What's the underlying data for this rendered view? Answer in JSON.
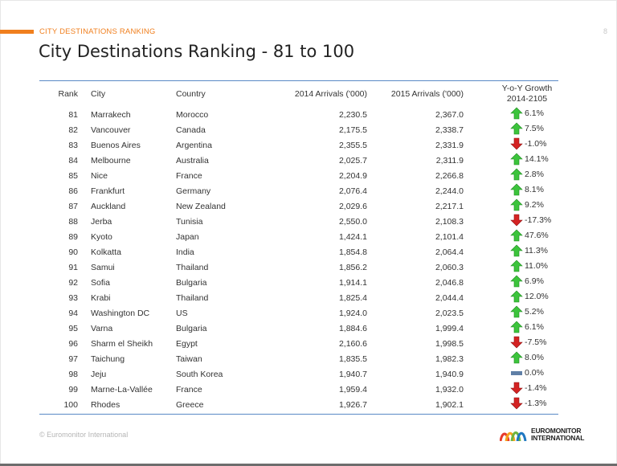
{
  "header": {
    "section_label": "CITY DESTINATIONS RANKING",
    "page_number": "8",
    "title": "City Destinations Ranking - 81 to 100"
  },
  "table": {
    "columns": [
      "Rank",
      "City",
      "Country",
      "2014 Arrivals ('000)",
      "2015 Arrivals ('000)",
      "Y-o-Y Growth 2014-2105"
    ],
    "rows": [
      {
        "rank": "81",
        "city": "Marrakech",
        "country": "Morocco",
        "a2014": "2,230.5",
        "a2015": "2,367.0",
        "trend": "up",
        "growth": "6.1%"
      },
      {
        "rank": "82",
        "city": "Vancouver",
        "country": "Canada",
        "a2014": "2,175.5",
        "a2015": "2,338.7",
        "trend": "up",
        "growth": "7.5%"
      },
      {
        "rank": "83",
        "city": "Buenos Aires",
        "country": "Argentina",
        "a2014": "2,355.5",
        "a2015": "2,331.9",
        "trend": "down",
        "growth": "-1.0%"
      },
      {
        "rank": "84",
        "city": "Melbourne",
        "country": "Australia",
        "a2014": "2,025.7",
        "a2015": "2,311.9",
        "trend": "up",
        "growth": "14.1%"
      },
      {
        "rank": "85",
        "city": "Nice",
        "country": "France",
        "a2014": "2,204.9",
        "a2015": "2,266.8",
        "trend": "up",
        "growth": "2.8%"
      },
      {
        "rank": "86",
        "city": "Frankfurt",
        "country": "Germany",
        "a2014": "2,076.4",
        "a2015": "2,244.0",
        "trend": "up",
        "growth": "8.1%"
      },
      {
        "rank": "87",
        "city": "Auckland",
        "country": "New Zealand",
        "a2014": "2,029.6",
        "a2015": "2,217.1",
        "trend": "up",
        "growth": "9.2%"
      },
      {
        "rank": "88",
        "city": "Jerba",
        "country": "Tunisia",
        "a2014": "2,550.0",
        "a2015": "2,108.3",
        "trend": "down",
        "growth": "-17.3%"
      },
      {
        "rank": "89",
        "city": "Kyoto",
        "country": "Japan",
        "a2014": "1,424.1",
        "a2015": "2,101.4",
        "trend": "up",
        "growth": "47.6%"
      },
      {
        "rank": "90",
        "city": "Kolkatta",
        "country": "India",
        "a2014": "1,854.8",
        "a2015": "2,064.4",
        "trend": "up",
        "growth": "11.3%"
      },
      {
        "rank": "91",
        "city": "Samui",
        "country": "Thailand",
        "a2014": "1,856.2",
        "a2015": "2,060.3",
        "trend": "up",
        "growth": "11.0%"
      },
      {
        "rank": "92",
        "city": "Sofia",
        "country": "Bulgaria",
        "a2014": "1,914.1",
        "a2015": "2,046.8",
        "trend": "up",
        "growth": "6.9%"
      },
      {
        "rank": "93",
        "city": "Krabi",
        "country": "Thailand",
        "a2014": "1,825.4",
        "a2015": "2,044.4",
        "trend": "up",
        "growth": "12.0%"
      },
      {
        "rank": "94",
        "city": "Washington DC",
        "country": "US",
        "a2014": "1,924.0",
        "a2015": "2,023.5",
        "trend": "up",
        "growth": "5.2%"
      },
      {
        "rank": "95",
        "city": "Varna",
        "country": "Bulgaria",
        "a2014": "1,884.6",
        "a2015": "1,999.4",
        "trend": "up",
        "growth": "6.1%"
      },
      {
        "rank": "96",
        "city": "Sharm el Sheikh",
        "country": "Egypt",
        "a2014": "2,160.6",
        "a2015": "1,998.5",
        "trend": "down",
        "growth": "-7.5%"
      },
      {
        "rank": "97",
        "city": "Taichung",
        "country": "Taiwan",
        "a2014": "1,835.5",
        "a2015": "1,982.3",
        "trend": "up",
        "growth": "8.0%"
      },
      {
        "rank": "98",
        "city": "Jeju",
        "country": "South Korea",
        "a2014": "1,940.7",
        "a2015": "1,940.9",
        "trend": "flat",
        "growth": "0.0%"
      },
      {
        "rank": "99",
        "city": "Marne-La-Vallée",
        "country": "France",
        "a2014": "1,959.4",
        "a2015": "1,932.0",
        "trend": "down",
        "growth": "-1.4%"
      },
      {
        "rank": "100",
        "city": "Rhodes",
        "country": "Greece",
        "a2014": "1,926.7",
        "a2015": "1,902.1",
        "trend": "down",
        "growth": "-1.3%"
      }
    ]
  },
  "footer": {
    "copyright": "© Euromonitor International",
    "logo_line1": "EUROMONITOR",
    "logo_line2": "INTERNATIONAL"
  },
  "colors": {
    "accent": "#f07f1e",
    "rule": "#5a8ac6",
    "up": "#3cc43c",
    "down": "#d42222",
    "flat": "#5f7fa6"
  },
  "icons": {
    "up": "arrow-up-icon",
    "down": "arrow-down-icon",
    "flat": "flat-bar-icon"
  }
}
